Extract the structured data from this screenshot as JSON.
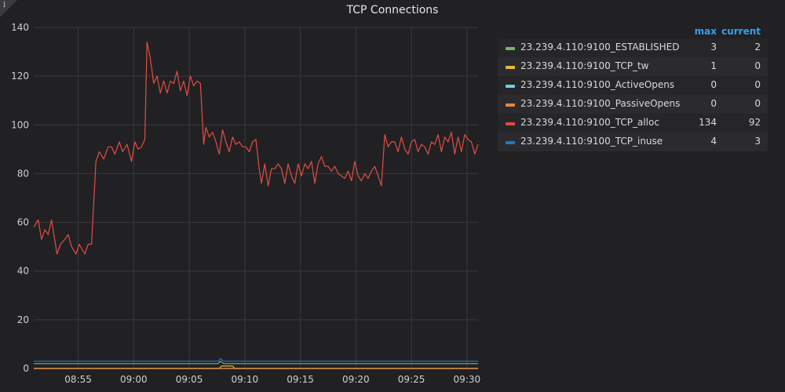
{
  "panel": {
    "title": "TCP Connections"
  },
  "legend": {
    "header_max": "max",
    "header_current": "current",
    "rows": [
      {
        "name": "23.239.4.110:9100_ESTABLISHED",
        "color": "#7eb26d",
        "max": "3",
        "current": "2"
      },
      {
        "name": "23.239.4.110:9100_TCP_tw",
        "color": "#eab839",
        "max": "1",
        "current": "0"
      },
      {
        "name": "23.239.4.110:9100_ActiveOpens",
        "color": "#6ed0e0",
        "max": "0",
        "current": "0"
      },
      {
        "name": "23.239.4.110:9100_PassiveOpens",
        "color": "#ef843c",
        "max": "0",
        "current": "0"
      },
      {
        "name": "23.239.4.110:9100_TCP_alloc",
        "color": "#e24d42",
        "max": "134",
        "current": "92"
      },
      {
        "name": "23.239.4.110:9100_TCP_inuse",
        "color": "#1f78c1",
        "max": "4",
        "current": "3"
      }
    ]
  },
  "chart_data": {
    "type": "line",
    "xlabel": "",
    "ylabel": "",
    "xlim": [
      "08:51",
      "09:31"
    ],
    "ylim": [
      0,
      140
    ],
    "yticks": [
      "0",
      "20",
      "40",
      "60",
      "80",
      "100",
      "120",
      "140"
    ],
    "xticks": [
      "08:55",
      "09:00",
      "09:05",
      "09:10",
      "09:15",
      "09:20",
      "09:25",
      "09:30"
    ],
    "grid": true,
    "legend_position": "right",
    "series": [
      {
        "name": "23.239.4.110:9100_ESTABLISHED",
        "color": "#7eb26d",
        "points": [
          [
            "08:51",
            2
          ],
          [
            "09:07.6",
            2
          ],
          [
            "09:07.8",
            3
          ],
          [
            "09:08.1",
            2
          ],
          [
            "09:31",
            2
          ]
        ]
      },
      {
        "name": "23.239.4.110:9100_TCP_tw",
        "color": "#eab839",
        "points": [
          [
            "08:51",
            0
          ],
          [
            "09:07.7",
            0
          ],
          [
            "09:07.9",
            1
          ],
          [
            "09:08.9",
            1
          ],
          [
            "09:09.1",
            0
          ],
          [
            "09:31",
            0
          ]
        ]
      },
      {
        "name": "23.239.4.110:9100_ActiveOpens",
        "color": "#6ed0e0",
        "points": [
          [
            "08:51",
            0
          ],
          [
            "09:31",
            0
          ]
        ]
      },
      {
        "name": "23.239.4.110:9100_PassiveOpens",
        "color": "#ef843c",
        "points": [
          [
            "08:51",
            0
          ],
          [
            "09:31",
            0
          ]
        ]
      },
      {
        "name": "23.239.4.110:9100_TCP_alloc",
        "color": "#e24d42",
        "points": [
          [
            "08:51.0",
            58
          ],
          [
            "08:51.4",
            61
          ],
          [
            "08:51.7",
            53
          ],
          [
            "08:52.0",
            57
          ],
          [
            "08:52.3",
            55
          ],
          [
            "08:52.6",
            61
          ],
          [
            "08:53.1",
            47
          ],
          [
            "08:53.4",
            51
          ],
          [
            "08:53.8",
            53
          ],
          [
            "08:54.1",
            55
          ],
          [
            "08:54.4",
            50
          ],
          [
            "08:54.8",
            47
          ],
          [
            "08:55.1",
            51
          ],
          [
            "08:55.6",
            47
          ],
          [
            "08:55.9",
            51
          ],
          [
            "08:56.2",
            51
          ],
          [
            "08:56.6",
            85
          ],
          [
            "08:56.9",
            89
          ],
          [
            "08:57.3",
            86
          ],
          [
            "08:57.7",
            91
          ],
          [
            "08:58.0",
            91
          ],
          [
            "08:58.3",
            88
          ],
          [
            "08:58.7",
            93
          ],
          [
            "08:59.0",
            89
          ],
          [
            "08:59.4",
            92
          ],
          [
            "08:59.8",
            85
          ],
          [
            "09:00.1",
            93
          ],
          [
            "09:00.4",
            90
          ],
          [
            "09:00.7",
            91
          ],
          [
            "09:01.0",
            94
          ],
          [
            "09:01.2",
            134
          ],
          [
            "09:01.5",
            127
          ],
          [
            "09:01.8",
            117
          ],
          [
            "09:02.1",
            120
          ],
          [
            "09:02.4",
            113
          ],
          [
            "09:02.7",
            118
          ],
          [
            "09:03.0",
            113
          ],
          [
            "09:03.3",
            118
          ],
          [
            "09:03.6",
            117
          ],
          [
            "09:03.9",
            122
          ],
          [
            "09:04.2",
            114
          ],
          [
            "09:04.5",
            118
          ],
          [
            "09:04.8",
            112
          ],
          [
            "09:05.1",
            120
          ],
          [
            "09:05.4",
            116
          ],
          [
            "09:05.7",
            118
          ],
          [
            "09:06.0",
            117
          ],
          [
            "09:06.3",
            92
          ],
          [
            "09:06.5",
            99
          ],
          [
            "09:06.8",
            95
          ],
          [
            "09:07.1",
            97
          ],
          [
            "09:07.4",
            93
          ],
          [
            "09:07.7",
            88
          ],
          [
            "09:08.0",
            98
          ],
          [
            "09:08.3",
            93
          ],
          [
            "09:08.6",
            89
          ],
          [
            "09:08.9",
            95
          ],
          [
            "09:09.2",
            92
          ],
          [
            "09:09.5",
            93
          ],
          [
            "09:09.8",
            91
          ],
          [
            "09:10.1",
            91
          ],
          [
            "09:10.4",
            89
          ],
          [
            "09:10.7",
            93
          ],
          [
            "09:11.0",
            94
          ],
          [
            "09:11.3",
            82
          ],
          [
            "09:11.5",
            76
          ],
          [
            "09:11.8",
            84
          ],
          [
            "09:12.1",
            75
          ],
          [
            "09:12.4",
            82
          ],
          [
            "09:12.7",
            82
          ],
          [
            "09:13.0",
            84
          ],
          [
            "09:13.3",
            82
          ],
          [
            "09:13.6",
            76
          ],
          [
            "09:13.9",
            84
          ],
          [
            "09:14.2",
            79
          ],
          [
            "09:14.5",
            76
          ],
          [
            "09:14.8",
            84
          ],
          [
            "09:15.1",
            79
          ],
          [
            "09:15.4",
            84
          ],
          [
            "09:15.7",
            82
          ],
          [
            "09:16.0",
            85
          ],
          [
            "09:16.3",
            76
          ],
          [
            "09:16.6",
            84
          ],
          [
            "09:16.9",
            87
          ],
          [
            "09:17.2",
            83
          ],
          [
            "09:17.5",
            83
          ],
          [
            "09:17.8",
            81
          ],
          [
            "09:18.1",
            83
          ],
          [
            "09:18.4",
            80
          ],
          [
            "09:18.7",
            79
          ],
          [
            "09:19.0",
            78
          ],
          [
            "09:19.3",
            81
          ],
          [
            "09:19.6",
            77
          ],
          [
            "09:19.9",
            85
          ],
          [
            "09:20.2",
            79
          ],
          [
            "09:20.5",
            77
          ],
          [
            "09:20.8",
            80
          ],
          [
            "09:21.1",
            78
          ],
          [
            "09:21.4",
            81
          ],
          [
            "09:21.7",
            83
          ],
          [
            "09:22.0",
            79
          ],
          [
            "09:22.3",
            75
          ],
          [
            "09:22.6",
            96
          ],
          [
            "09:22.9",
            91
          ],
          [
            "09:23.2",
            93
          ],
          [
            "09:23.5",
            93
          ],
          [
            "09:23.8",
            89
          ],
          [
            "09:24.1",
            95
          ],
          [
            "09:24.4",
            90
          ],
          [
            "09:24.7",
            88
          ],
          [
            "09:25.0",
            93
          ],
          [
            "09:25.3",
            94
          ],
          [
            "09:25.6",
            89
          ],
          [
            "09:25.9",
            92
          ],
          [
            "09:26.2",
            91
          ],
          [
            "09:26.5",
            88
          ],
          [
            "09:26.8",
            93
          ],
          [
            "09:27.1",
            92
          ],
          [
            "09:27.4",
            96
          ],
          [
            "09:27.7",
            89
          ],
          [
            "09:28.0",
            95
          ],
          [
            "09:28.3",
            93
          ],
          [
            "09:28.6",
            97
          ],
          [
            "09:28.9",
            88
          ],
          [
            "09:29.2",
            95
          ],
          [
            "09:29.5",
            89
          ],
          [
            "09:29.8",
            96
          ],
          [
            "09:30.1",
            94
          ],
          [
            "09:30.4",
            93
          ],
          [
            "09:30.7",
            88
          ],
          [
            "09:31.0",
            92
          ]
        ]
      },
      {
        "name": "23.239.4.110:9100_TCP_inuse",
        "color": "#1f78c1",
        "points": [
          [
            "08:51",
            3
          ],
          [
            "09:07.6",
            3
          ],
          [
            "09:07.8",
            4
          ],
          [
            "09:08.1",
            3
          ],
          [
            "09:31",
            3
          ]
        ]
      }
    ]
  }
}
